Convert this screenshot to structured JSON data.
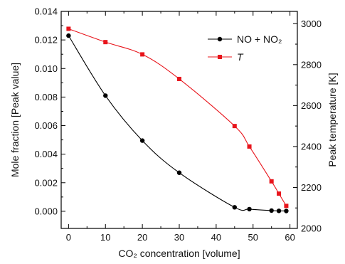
{
  "chart_data": {
    "type": "line",
    "xlabel": "CO₂ concentration [volume]",
    "ylabel_left": "Mole fraction [Peak value]",
    "ylabel_right": "Peak temperature [K]",
    "xlim": [
      -2,
      62
    ],
    "ylim_left": [
      -0.0012,
      0.014
    ],
    "ylim_right": [
      2000,
      3060
    ],
    "x_ticks": [
      0,
      10,
      20,
      30,
      40,
      50,
      60
    ],
    "y_left_ticks": [
      0.0,
      0.002,
      0.004,
      0.006,
      0.008,
      0.01,
      0.012,
      0.014
    ],
    "y_left_tick_labels": [
      "0.000",
      "0.002",
      "0.004",
      "0.006",
      "0.008",
      "0.010",
      "0.012",
      "0.014"
    ],
    "y_right_ticks": [
      2000,
      2200,
      2400,
      2600,
      2800,
      3000
    ],
    "grid": false,
    "legend_position": "top-right",
    "series": [
      {
        "name": "NO + NO₂",
        "axis": "left",
        "color": "#000000",
        "marker": "circle",
        "x": [
          0,
          10,
          20,
          30,
          45,
          49,
          55,
          57,
          59
        ],
        "y": [
          0.0123,
          0.0081,
          0.00495,
          0.0027,
          0.00028,
          0.00015,
          5e-05,
          3e-05,
          2e-05
        ]
      },
      {
        "name": "T",
        "axis": "right",
        "color": "#e8141b",
        "marker": "square",
        "x": [
          0,
          10,
          20,
          30,
          45,
          49,
          55,
          57,
          59
        ],
        "y": [
          2975,
          2910,
          2850,
          2730,
          2500,
          2400,
          2230,
          2170,
          2110
        ]
      }
    ]
  }
}
